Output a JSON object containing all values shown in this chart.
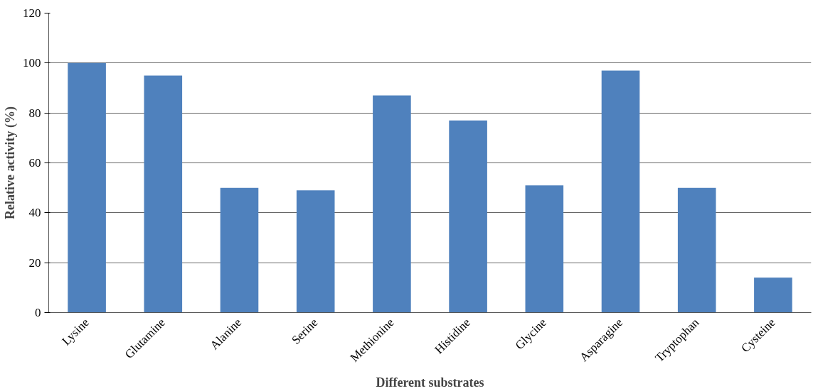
{
  "chart_data": {
    "type": "bar",
    "xlabel": "Different substrates",
    "ylabel": "Relative activity (%)",
    "categories": [
      "Lysine",
      "Glutamine",
      "Alanine",
      "Serine",
      "Methionine",
      "Histidine",
      "Glycine",
      "Asparagine",
      "Tryptophan",
      "Cysteine"
    ],
    "values": [
      100,
      95,
      50,
      49,
      87,
      77,
      51,
      97,
      50,
      14
    ],
    "color": "#4f81bd",
    "ylim": [
      0,
      120
    ],
    "yticks": [
      0,
      20,
      40,
      60,
      80,
      100,
      120
    ],
    "grid": "y"
  }
}
